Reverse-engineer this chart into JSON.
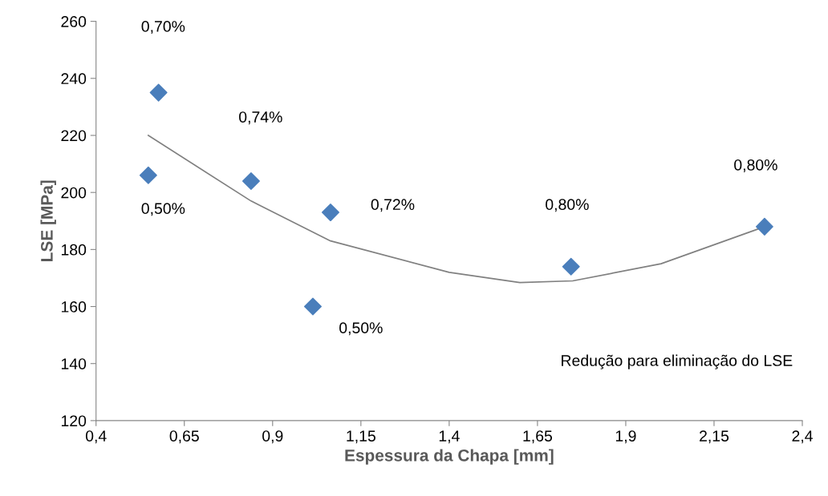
{
  "chart_data": {
    "type": "scatter",
    "xlabel": "Espessura da Chapa [mm]",
    "ylabel": "LSE [MPa]",
    "xlim": [
      0.4,
      2.4
    ],
    "xticks": [
      {
        "value": 0.4,
        "label": "0,4"
      },
      {
        "value": 0.65,
        "label": "0,65"
      },
      {
        "value": 0.9,
        "label": "0,9"
      },
      {
        "value": 1.15,
        "label": "1,15"
      },
      {
        "value": 1.4,
        "label": "1,4"
      },
      {
        "value": 1.65,
        "label": "1,65"
      },
      {
        "value": 1.9,
        "label": "1,9"
      },
      {
        "value": 2.15,
        "label": "2,15"
      },
      {
        "value": 2.4,
        "label": "2,4"
      }
    ],
    "ylim": [
      120,
      260
    ],
    "yticks": [
      120,
      140,
      160,
      180,
      200,
      220,
      240,
      260
    ],
    "grid": false,
    "series": [
      {
        "color": "#4a7ebb",
        "marker": "diamond",
        "x": [
          0.548,
          0.577,
          0.839,
          1.064,
          1.014,
          1.745,
          2.293
        ],
        "values": [
          206,
          235,
          204,
          193,
          160,
          174,
          188
        ]
      },
      {
        "type": "line",
        "marker": "none",
        "color": "#808080",
        "x": [
          0.548,
          0.839,
          1.064,
          1.4,
          1.6,
          1.75,
          2.0,
          2.293
        ],
        "values": [
          220,
          197,
          183,
          172,
          168.4,
          169,
          175,
          188
        ]
      }
    ],
    "annotations": [
      "0,70%",
      "0,74%",
      "0,50%",
      "0,72%",
      "0,80%",
      "0,80%",
      "0,50%",
      "Redução para eliminação do LSE"
    ]
  }
}
